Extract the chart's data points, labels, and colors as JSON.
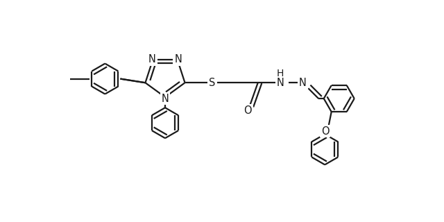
{
  "bg_color": "#ffffff",
  "line_color": "#1a1a1a",
  "line_width": 1.6,
  "font_size": 10.5,
  "figsize": [
    6.4,
    3.2
  ],
  "dpi": 100,
  "xlim": [
    0,
    640
  ],
  "ylim": [
    0,
    320
  ]
}
